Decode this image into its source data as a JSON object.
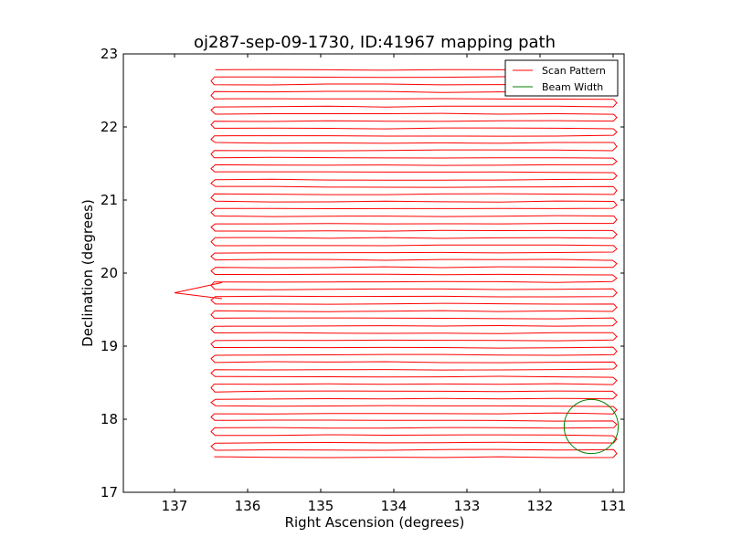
{
  "chart_data": {
    "type": "line",
    "title": "oj287-sep-09-1730, ID:41967 mapping path",
    "xlabel": "Right Ascension (degrees)",
    "ylabel": "Declination (degrees)",
    "xlim": [
      137.7,
      130.85
    ],
    "ylim": [
      17,
      23
    ],
    "x_inverted": true,
    "xticks": [
      "137",
      "136",
      "135",
      "134",
      "133",
      "132",
      "131"
    ],
    "yticks": [
      "17",
      "18",
      "19",
      "20",
      "21",
      "22",
      "23"
    ],
    "grid": false,
    "legend_placement": "top-right",
    "series": [
      {
        "name": "Scan Pattern",
        "color": "#ff0000",
        "pattern": "raster",
        "ra_start": 136.45,
        "ra_end": 131.0,
        "dec_start": 17.48,
        "dec_end": 22.73,
        "row_spacing": 0.1,
        "outlier": {
          "x": 137.0,
          "y": 19.73
        }
      },
      {
        "name": "Beam Width",
        "color": "#007f00",
        "shape": "circle",
        "center": {
          "x": 131.3,
          "y": 17.9
        },
        "radius_deg": 0.37
      }
    ]
  }
}
